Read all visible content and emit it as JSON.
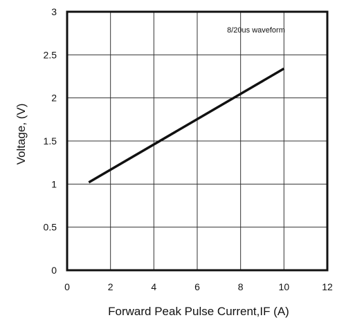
{
  "chart_data": {
    "type": "line",
    "title": "",
    "xlabel": "Forward Peak Pulse Current,IF (A)",
    "ylabel": "Voltage, (V)",
    "xlim": [
      0,
      12
    ],
    "ylim": [
      0,
      3
    ],
    "x_ticks": [
      "0",
      "2",
      "4",
      "6",
      "8",
      "10",
      "12"
    ],
    "y_ticks": [
      "0",
      "0.5",
      "1",
      "1.5",
      "2",
      "2.5",
      "3"
    ],
    "grid": true,
    "annotation": "8/20us waveform",
    "series": [
      {
        "x": [
          1,
          10
        ],
        "y": [
          1.02,
          2.34
        ],
        "color": "#111111"
      }
    ]
  }
}
